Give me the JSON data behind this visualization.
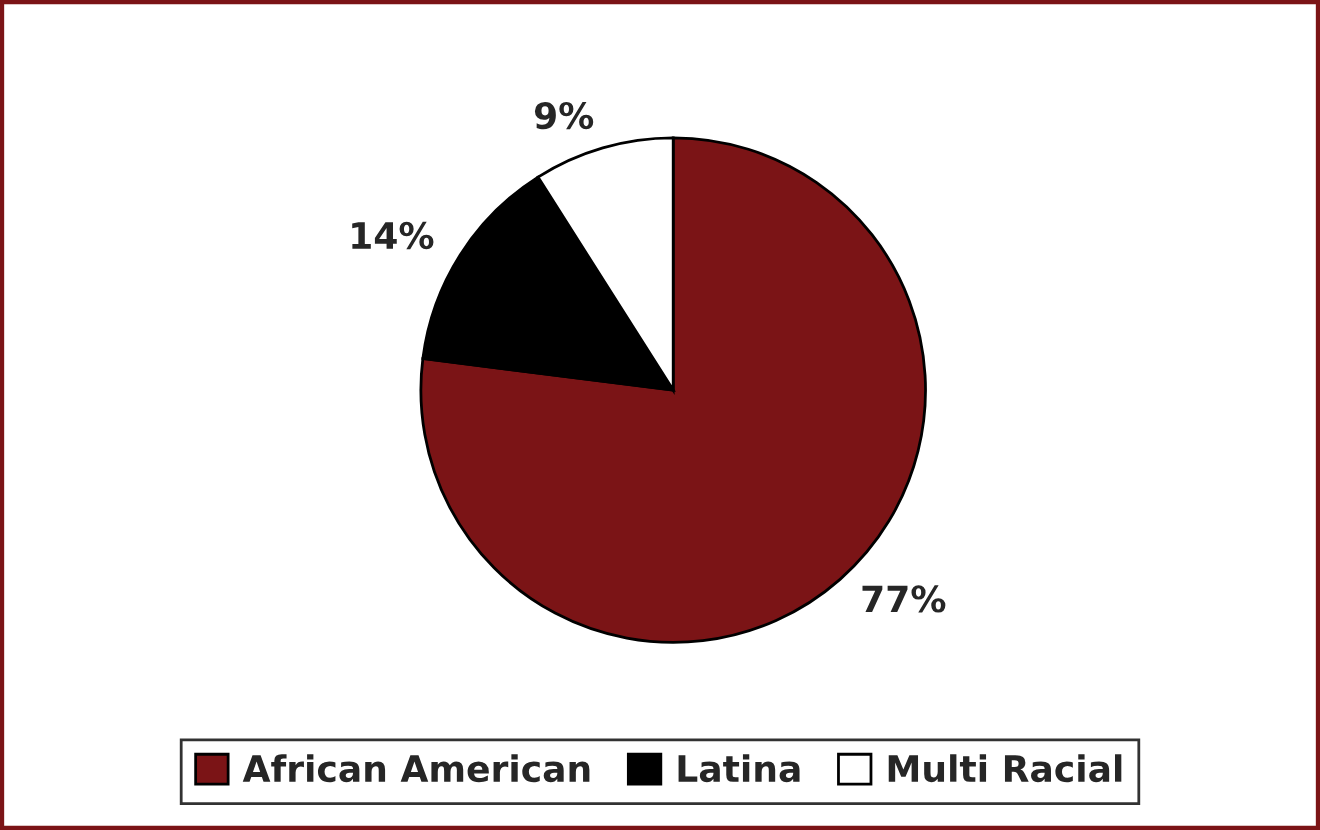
{
  "chart_data": {
    "type": "pie",
    "categories": [
      "African American",
      "Latina",
      "Multi Racial"
    ],
    "values": [
      77,
      14,
      9
    ],
    "colors": [
      "#7b1416",
      "#000000",
      "#ffffff"
    ],
    "value_labels": [
      "77%",
      "14%",
      "9%"
    ],
    "legend": "bottom"
  }
}
